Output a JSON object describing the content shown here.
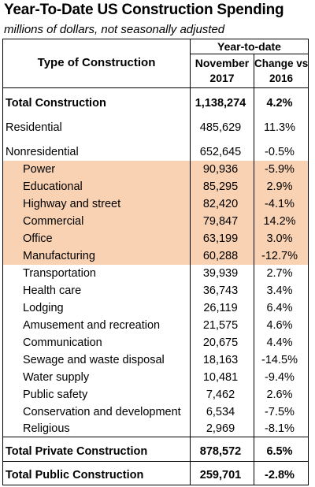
{
  "title": "Year-To-Date US Construction Spending",
  "subtitle": "millions of dollars, not seasonally adjusted",
  "header": {
    "group": "Year-to-date",
    "type_col": "Type of Construction",
    "col1_line1": "November",
    "col1_line2": "2017",
    "col2_line1": "Change vs",
    "col2_line2": "2016"
  },
  "rows": [
    {
      "label": "Total Construction",
      "value": "1,138,274",
      "change": "4.2%"
    },
    {
      "label": "Residential",
      "value": "485,629",
      "change": "11.3%"
    },
    {
      "label": "Nonresidential",
      "value": "652,645",
      "change": "-0.5%"
    },
    {
      "label": "Power",
      "value": "90,936",
      "change": "-5.9%"
    },
    {
      "label": "Educational",
      "value": "85,295",
      "change": "2.9%"
    },
    {
      "label": "Highway and street",
      "value": "82,420",
      "change": "-4.1%"
    },
    {
      "label": "Commercial",
      "value": "79,847",
      "change": "14.2%"
    },
    {
      "label": "Office",
      "value": "63,199",
      "change": "3.0%"
    },
    {
      "label": "Manufacturing",
      "value": "60,288",
      "change": "-12.7%"
    },
    {
      "label": "Transportation",
      "value": "39,939",
      "change": "2.7%"
    },
    {
      "label": "Health care",
      "value": "36,743",
      "change": "3.4%"
    },
    {
      "label": "Lodging",
      "value": "26,119",
      "change": "6.4%"
    },
    {
      "label": "Amusement and recreation",
      "value": "21,575",
      "change": "4.6%"
    },
    {
      "label": "Communication",
      "value": "20,675",
      "change": "4.4%"
    },
    {
      "label": "Sewage and waste disposal",
      "value": "18,163",
      "change": "-14.5%"
    },
    {
      "label": "Water supply",
      "value": "10,481",
      "change": "-9.4%"
    },
    {
      "label": "Public safety",
      "value": "7,462",
      "change": "2.6%"
    },
    {
      "label": "Conservation and development",
      "value": "6,534",
      "change": "-7.5%"
    },
    {
      "label": "Religious",
      "value": "2,969",
      "change": "-8.1%"
    },
    {
      "label": "Total Private Construction",
      "value": "878,572",
      "change": "6.5%"
    },
    {
      "label": "Total Public Construction",
      "value": "259,701",
      "change": "-2.8%"
    }
  ],
  "highlight_color": "#f9d2b3"
}
